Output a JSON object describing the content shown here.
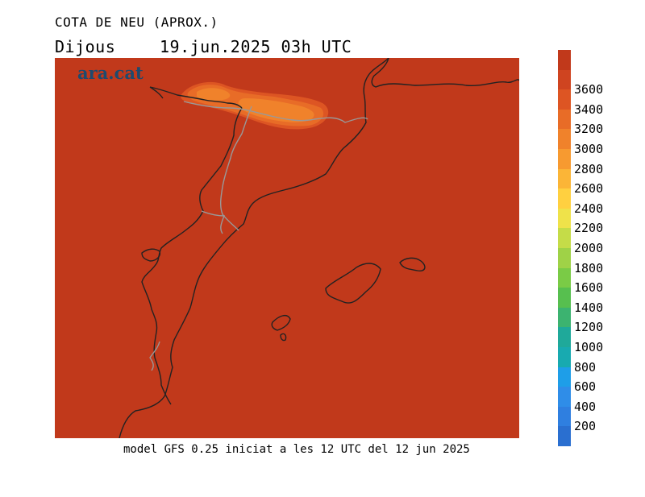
{
  "header": {
    "title": "COTA DE NEU (APROX.)",
    "day": "Dijous",
    "datetime": "19.jun.2025 03h UTC"
  },
  "logo": {
    "text": "ara.cat"
  },
  "footer": {
    "text": "model GFS 0.25 iniciat a les 12 UTC del 12 jun 2025"
  },
  "colorbar": {
    "levels": [
      {
        "label": "",
        "color": "#2a6fd0"
      },
      {
        "label": "200",
        "color": "#2f7fe0"
      },
      {
        "label": "400",
        "color": "#2f8de8"
      },
      {
        "label": "600",
        "color": "#1e9ee8"
      },
      {
        "label": "800",
        "color": "#18aab0"
      },
      {
        "label": "1000",
        "color": "#1fa99a"
      },
      {
        "label": "1200",
        "color": "#3cb370"
      },
      {
        "label": "1400",
        "color": "#57bf4f"
      },
      {
        "label": "1600",
        "color": "#7acb46"
      },
      {
        "label": "1800",
        "color": "#9fd247"
      },
      {
        "label": "2000",
        "color": "#c5dc48"
      },
      {
        "label": "2200",
        "color": "#efe24a"
      },
      {
        "label": "2400",
        "color": "#ffd040"
      },
      {
        "label": "2600",
        "color": "#fbb537"
      },
      {
        "label": "2800",
        "color": "#f79a30"
      },
      {
        "label": "3000",
        "color": "#f0822b"
      },
      {
        "label": "3200",
        "color": "#e86c27"
      },
      {
        "label": "3400",
        "color": "#dd5523"
      },
      {
        "label": "3600",
        "color": "#cf4420"
      },
      {
        "label": "",
        "color": "#c1391b"
      }
    ]
  },
  "colors": {
    "background_field": "#c1391b",
    "coast": "#222222",
    "border": "#999999"
  }
}
